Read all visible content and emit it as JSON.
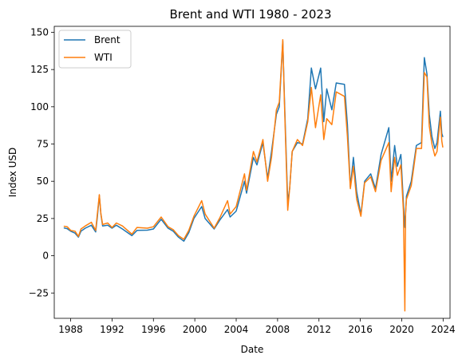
{
  "chart_data": {
    "type": "line",
    "title": "Brent and WTI 1980 - 2023",
    "xlabel": "Date",
    "ylabel": "Index USD",
    "xlim": [
      "1986-06-01",
      "2024-09-01"
    ],
    "ylim": [
      -42,
      154
    ],
    "x_ticks": [
      "1988",
      "1992",
      "1996",
      "2000",
      "2004",
      "2008",
      "2012",
      "2016",
      "2020",
      "2024"
    ],
    "y_ticks": [
      -25,
      0,
      25,
      50,
      75,
      100,
      125,
      150
    ],
    "grid": false,
    "legend": "top-left",
    "series": [
      {
        "name": "Brent",
        "color": "#1f77b4",
        "points": [
          [
            "1987-05-20",
            18.6
          ],
          [
            "1987-09-01",
            18.2
          ],
          [
            "1988-01-01",
            16.5
          ],
          [
            "1988-06-01",
            15.2
          ],
          [
            "1988-10-01",
            12.5
          ],
          [
            "1989-01-01",
            16.5
          ],
          [
            "1989-06-01",
            18.5
          ],
          [
            "1990-01-01",
            20.5
          ],
          [
            "1990-06-01",
            16.0
          ],
          [
            "1990-08-01",
            26.0
          ],
          [
            "1990-10-10",
            40.5
          ],
          [
            "1990-12-01",
            28.0
          ],
          [
            "1991-02-01",
            20.0
          ],
          [
            "1991-08-01",
            20.5
          ],
          [
            "1992-01-01",
            18.5
          ],
          [
            "1992-06-01",
            20.5
          ],
          [
            "1993-01-01",
            18.0
          ],
          [
            "1993-12-01",
            13.5
          ],
          [
            "1994-06-01",
            17.0
          ],
          [
            "1995-06-01",
            17.2
          ],
          [
            "1996-01-01",
            18.0
          ],
          [
            "1996-10-01",
            24.5
          ],
          [
            "1997-06-01",
            18.5
          ],
          [
            "1997-12-01",
            16.5
          ],
          [
            "1998-06-01",
            12.5
          ],
          [
            "1998-12-10",
            9.8
          ],
          [
            "1999-06-01",
            15.5
          ],
          [
            "1999-12-01",
            25.0
          ],
          [
            "2000-09-01",
            33.0
          ],
          [
            "2001-01-01",
            25.0
          ],
          [
            "2001-11-15",
            18.0
          ],
          [
            "2002-06-01",
            24.0
          ],
          [
            "2003-03-01",
            31.0
          ],
          [
            "2003-06-01",
            26.0
          ],
          [
            "2004-01-01",
            30.0
          ],
          [
            "2004-10-20",
            50.0
          ],
          [
            "2005-01-01",
            42.0
          ],
          [
            "2005-08-30",
            66.0
          ],
          [
            "2006-01-01",
            61.0
          ],
          [
            "2006-08-01",
            76.0
          ],
          [
            "2007-01-15",
            52.0
          ],
          [
            "2007-06-01",
            70.0
          ],
          [
            "2007-11-20",
            95.0
          ],
          [
            "2008-03-01",
            100.0
          ],
          [
            "2008-07-03",
            144.0
          ],
          [
            "2008-09-01",
            105.0
          ],
          [
            "2008-12-24",
            36.0
          ],
          [
            "2009-03-01",
            45.0
          ],
          [
            "2009-06-01",
            70.0
          ],
          [
            "2009-12-01",
            76.0
          ],
          [
            "2010-06-01",
            75.0
          ],
          [
            "2010-12-01",
            92.0
          ],
          [
            "2011-04-08",
            126.0
          ],
          [
            "2011-09-01",
            112.0
          ],
          [
            "2012-03-01",
            126.0
          ],
          [
            "2012-06-20",
            90.0
          ],
          [
            "2012-10-01",
            112.0
          ],
          [
            "2013-04-01",
            98.0
          ],
          [
            "2013-09-01",
            116.0
          ],
          [
            "2014-06-20",
            115.0
          ],
          [
            "2014-10-01",
            88.0
          ],
          [
            "2015-01-13",
            46.0
          ],
          [
            "2015-05-01",
            66.0
          ],
          [
            "2015-08-24",
            43.0
          ],
          [
            "2016-01-20",
            27.5
          ],
          [
            "2016-06-01",
            50.0
          ],
          [
            "2017-01-01",
            55.0
          ],
          [
            "2017-06-20",
            45.0
          ],
          [
            "2018-01-01",
            68.0
          ],
          [
            "2018-10-03",
            86.0
          ],
          [
            "2018-12-24",
            50.0
          ],
          [
            "2019-04-25",
            74.0
          ],
          [
            "2019-08-01",
            60.0
          ],
          [
            "2019-12-01",
            68.0
          ],
          [
            "2020-03-01",
            35.0
          ],
          [
            "2020-04-21",
            19.0
          ],
          [
            "2020-06-15",
            40.0
          ],
          [
            "2020-12-01",
            50.0
          ],
          [
            "2021-06-01",
            74.0
          ],
          [
            "2021-12-01",
            76.0
          ],
          [
            "2022-03-08",
            133.0
          ],
          [
            "2022-06-10",
            122.0
          ],
          [
            "2022-09-01",
            95.0
          ],
          [
            "2022-12-01",
            80.0
          ],
          [
            "2023-03-17",
            72.0
          ],
          [
            "2023-06-01",
            76.0
          ],
          [
            "2023-09-27",
            97.0
          ],
          [
            "2023-11-15",
            82.0
          ],
          [
            "2023-12-20",
            80.0
          ]
        ]
      },
      {
        "name": "WTI",
        "color": "#ff7f0e",
        "points": [
          [
            "1987-05-20",
            19.8
          ],
          [
            "1987-09-01",
            19.5
          ],
          [
            "1988-01-01",
            17.0
          ],
          [
            "1988-06-01",
            16.5
          ],
          [
            "1988-10-01",
            13.0
          ],
          [
            "1989-01-01",
            18.0
          ],
          [
            "1989-06-01",
            20.0
          ],
          [
            "1990-01-01",
            22.5
          ],
          [
            "1990-06-01",
            17.0
          ],
          [
            "1990-08-01",
            28.0
          ],
          [
            "1990-10-10",
            41.0
          ],
          [
            "1990-12-01",
            28.5
          ],
          [
            "1991-02-01",
            21.0
          ],
          [
            "1991-08-01",
            22.0
          ],
          [
            "1992-01-01",
            19.0
          ],
          [
            "1992-06-01",
            22.0
          ],
          [
            "1993-01-01",
            20.0
          ],
          [
            "1993-12-01",
            14.5
          ],
          [
            "1994-06-01",
            19.0
          ],
          [
            "1995-06-01",
            18.5
          ],
          [
            "1996-01-01",
            19.5
          ],
          [
            "1996-10-01",
            26.0
          ],
          [
            "1997-06-01",
            19.5
          ],
          [
            "1997-12-01",
            17.5
          ],
          [
            "1998-06-01",
            13.5
          ],
          [
            "1998-12-10",
            11.0
          ],
          [
            "1999-06-01",
            17.0
          ],
          [
            "1999-12-01",
            26.5
          ],
          [
            "2000-09-01",
            37.0
          ],
          [
            "2001-01-01",
            28.0
          ],
          [
            "2001-11-15",
            18.5
          ],
          [
            "2002-06-01",
            25.5
          ],
          [
            "2003-03-01",
            37.0
          ],
          [
            "2003-06-01",
            28.0
          ],
          [
            "2004-01-01",
            33.0
          ],
          [
            "2004-10-20",
            55.0
          ],
          [
            "2005-01-01",
            44.0
          ],
          [
            "2005-08-30",
            70.0
          ],
          [
            "2006-01-01",
            63.0
          ],
          [
            "2006-08-01",
            78.0
          ],
          [
            "2007-01-15",
            50.0
          ],
          [
            "2007-06-01",
            66.0
          ],
          [
            "2007-11-20",
            98.0
          ],
          [
            "2008-03-01",
            103.0
          ],
          [
            "2008-07-03",
            145.0
          ],
          [
            "2008-09-01",
            102.0
          ],
          [
            "2008-12-24",
            30.5
          ],
          [
            "2009-03-01",
            45.0
          ],
          [
            "2009-06-01",
            70.0
          ],
          [
            "2009-12-01",
            78.0
          ],
          [
            "2010-06-01",
            74.0
          ],
          [
            "2010-12-01",
            90.0
          ],
          [
            "2011-04-08",
            113.0
          ],
          [
            "2011-09-01",
            86.0
          ],
          [
            "2012-03-01",
            108.0
          ],
          [
            "2012-06-20",
            78.0
          ],
          [
            "2012-10-01",
            92.0
          ],
          [
            "2013-04-01",
            88.0
          ],
          [
            "2013-09-01",
            110.0
          ],
          [
            "2014-06-20",
            107.0
          ],
          [
            "2014-10-01",
            80.0
          ],
          [
            "2015-01-13",
            45.0
          ],
          [
            "2015-05-01",
            60.0
          ],
          [
            "2015-08-24",
            38.0
          ],
          [
            "2016-01-20",
            26.5
          ],
          [
            "2016-06-01",
            49.0
          ],
          [
            "2017-01-01",
            53.0
          ],
          [
            "2017-06-20",
            43.0
          ],
          [
            "2018-01-01",
            64.0
          ],
          [
            "2018-10-03",
            76.0
          ],
          [
            "2018-12-24",
            43.0
          ],
          [
            "2019-04-25",
            66.0
          ],
          [
            "2019-08-01",
            54.0
          ],
          [
            "2019-12-01",
            61.0
          ],
          [
            "2020-03-01",
            30.0
          ],
          [
            "2020-04-20",
            -37.0
          ],
          [
            "2020-05-15",
            29.0
          ],
          [
            "2020-06-15",
            38.0
          ],
          [
            "2020-12-01",
            47.0
          ],
          [
            "2021-06-01",
            72.0
          ],
          [
            "2021-12-01",
            72.0
          ],
          [
            "2022-03-08",
            123.0
          ],
          [
            "2022-06-10",
            120.0
          ],
          [
            "2022-09-01",
            87.0
          ],
          [
            "2022-12-01",
            75.0
          ],
          [
            "2023-03-17",
            67.0
          ],
          [
            "2023-06-01",
            70.0
          ],
          [
            "2023-09-27",
            93.0
          ],
          [
            "2023-11-15",
            77.0
          ],
          [
            "2023-12-20",
            73.0
          ]
        ]
      }
    ]
  }
}
